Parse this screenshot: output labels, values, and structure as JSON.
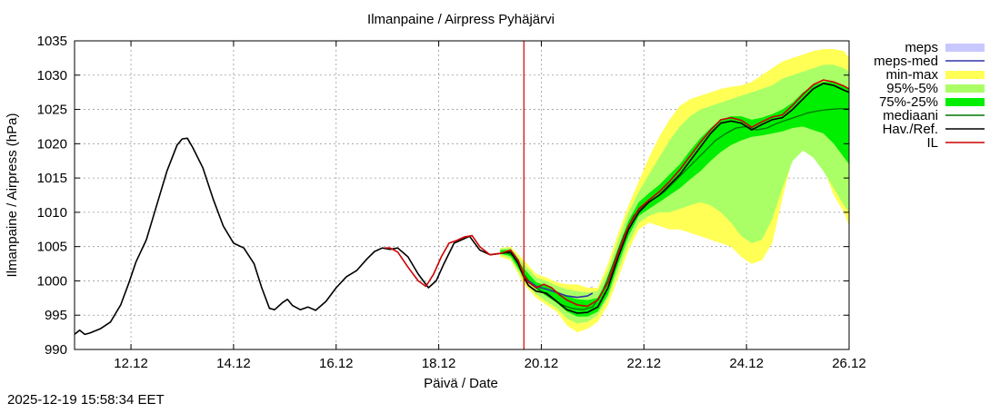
{
  "chart_data": {
    "type": "line",
    "title": "Ilmanpaine / Airpress Pyhäjärvi",
    "xlabel": "Päivä / Date",
    "ylabel": "Ilmanpaine / Airpress (hPa)",
    "timestamp": "2025-12-19 15:58:34 EET",
    "xlim": [
      10.9,
      26.0
    ],
    "ylim": [
      990,
      1035
    ],
    "grid": true,
    "x_ticks": [
      {
        "value": 12.0,
        "label": "12.12"
      },
      {
        "value": 14.0,
        "label": "14.12"
      },
      {
        "value": 16.0,
        "label": "16.12"
      },
      {
        "value": 18.0,
        "label": "18.12"
      },
      {
        "value": 20.0,
        "label": "20.12"
      },
      {
        "value": 22.0,
        "label": "22.12"
      },
      {
        "value": 24.0,
        "label": "24.12"
      },
      {
        "value": 26.0,
        "label": "26.12"
      }
    ],
    "y_ticks": [
      990,
      995,
      1000,
      1005,
      1010,
      1015,
      1020,
      1025,
      1030,
      1035
    ],
    "now_marker": {
      "x": 19.66,
      "color": "#cc0000"
    },
    "legend": {
      "placement": "top-right",
      "entries": [
        {
          "label": "meps",
          "color": "#c8c8ff",
          "kind": "band"
        },
        {
          "label": "meps-med",
          "color": "#3333aa",
          "kind": "line"
        },
        {
          "label": "min-max",
          "color": "#ffff55",
          "kind": "band"
        },
        {
          "label": "95%-5%",
          "color": "#aaff66",
          "kind": "band"
        },
        {
          "label": "75%-25%",
          "color": "#00ee00",
          "kind": "band"
        },
        {
          "label": "mediaani",
          "color": "#007700",
          "kind": "line"
        },
        {
          "label": "Hav./Ref.",
          "color": "#000000",
          "kind": "line"
        },
        {
          "label": "IL",
          "color": "#cc0000",
          "kind": "line"
        }
      ]
    },
    "series": [
      {
        "name": "Hav./Ref.",
        "color": "#000000",
        "x": [
          10.9,
          11.0,
          11.1,
          11.2,
          11.4,
          11.6,
          11.8,
          11.95,
          12.1,
          12.3,
          12.5,
          12.7,
          12.9,
          13.0,
          13.1,
          13.2,
          13.4,
          13.6,
          13.8,
          14.0,
          14.2,
          14.4,
          14.55,
          14.7,
          14.8,
          14.95,
          15.05,
          15.15,
          15.3,
          15.45,
          15.6,
          15.8,
          16.0,
          16.2,
          16.4,
          16.6,
          16.75,
          16.9,
          17.05,
          17.2,
          17.4,
          17.6,
          17.8,
          17.95,
          18.1,
          18.3,
          18.45,
          18.6,
          18.8,
          19.0,
          19.2,
          19.4,
          19.55,
          19.66,
          19.75,
          19.9,
          20.1,
          20.3,
          20.5,
          20.7,
          20.9,
          21.1,
          21.3,
          21.5,
          21.7,
          21.9,
          22.1,
          22.3,
          22.5,
          22.7,
          22.9,
          23.1,
          23.3,
          23.5,
          23.7,
          23.9,
          24.1,
          24.3,
          24.5,
          24.7,
          24.9,
          25.1,
          25.3,
          25.5,
          25.7,
          25.9,
          26.0
        ],
        "values": [
          992.2,
          992.8,
          992.2,
          992.4,
          993.0,
          994.0,
          996.5,
          999.5,
          1002.8,
          1006.0,
          1011.0,
          1016.0,
          1019.8,
          1020.7,
          1020.8,
          1019.5,
          1016.5,
          1012.0,
          1008.0,
          1005.5,
          1004.8,
          1002.5,
          999.0,
          996.0,
          995.8,
          996.8,
          997.3,
          996.4,
          995.8,
          996.2,
          995.7,
          997.0,
          999.0,
          1000.6,
          1001.5,
          1003.2,
          1004.3,
          1004.8,
          1004.6,
          1004.8,
          1003.5,
          1001.0,
          999.0,
          1000.0,
          1002.5,
          1005.5,
          1006.0,
          1006.5,
          1004.5,
          1003.8,
          1004.0,
          1004.2,
          1002.5,
          1000.5,
          999.3,
          998.5,
          998.2,
          997.0,
          995.8,
          995.3,
          995.4,
          996.2,
          999.0,
          1003.5,
          1007.5,
          1010.0,
          1011.5,
          1012.5,
          1014.0,
          1015.5,
          1017.5,
          1019.5,
          1021.5,
          1023.0,
          1023.3,
          1023.0,
          1022.0,
          1022.8,
          1023.5,
          1023.8,
          1025.0,
          1026.5,
          1028.0,
          1028.8,
          1028.5,
          1027.8,
          1027.5
        ]
      },
      {
        "name": "IL",
        "color": "#cc0000",
        "x": [
          16.95,
          17.05,
          17.2,
          17.4,
          17.6,
          17.75,
          17.9,
          18.05,
          18.2,
          18.35,
          18.5,
          18.65,
          18.8,
          19.0,
          19.2,
          19.4,
          19.55,
          19.66,
          19.75,
          19.9,
          20.05,
          20.2,
          20.35,
          20.5,
          20.7,
          20.9,
          21.1,
          21.3,
          21.5,
          21.7,
          21.9,
          22.1,
          22.3,
          22.5,
          22.7,
          22.9,
          23.1,
          23.3,
          23.5,
          23.7,
          23.9,
          24.1,
          24.3,
          24.5,
          24.7,
          24.9,
          25.1,
          25.3,
          25.5,
          25.7,
          25.9,
          26.0
        ],
        "values": [
          1004.8,
          1004.8,
          1004.2,
          1002.0,
          1000.0,
          999.2,
          1001.0,
          1003.5,
          1005.5,
          1005.9,
          1006.4,
          1006.6,
          1005.0,
          1003.8,
          1004.0,
          1004.5,
          1003.0,
          1000.8,
          999.8,
          999.0,
          999.5,
          999.0,
          998.0,
          997.2,
          996.5,
          996.3,
          997.2,
          999.8,
          1004.0,
          1008.0,
          1010.5,
          1011.8,
          1013.0,
          1014.5,
          1016.2,
          1018.2,
          1020.2,
          1022.0,
          1023.5,
          1023.8,
          1023.4,
          1022.4,
          1023.2,
          1023.9,
          1024.2,
          1025.6,
          1027.2,
          1028.6,
          1029.3,
          1029.0,
          1028.4,
          1028.0
        ]
      },
      {
        "name": "mediaani",
        "color": "#007700",
        "x": [
          19.3,
          19.5,
          19.66,
          19.8,
          20.0,
          20.2,
          20.4,
          20.6,
          20.8,
          21.0,
          21.2,
          21.4,
          21.6,
          21.8,
          22.0,
          22.2,
          22.4,
          22.6,
          22.8,
          23.0,
          23.2,
          23.4,
          23.6,
          23.8,
          24.0,
          24.2,
          24.4,
          24.6,
          24.8,
          25.0,
          25.2,
          25.4,
          25.6,
          25.8,
          26.0
        ],
        "values": [
          1004.2,
          1003.5,
          1001.0,
          999.5,
          998.5,
          997.5,
          996.5,
          996.0,
          995.8,
          996.2,
          998.5,
          1002.5,
          1006.5,
          1009.5,
          1011.0,
          1012.0,
          1013.0,
          1014.5,
          1016.0,
          1017.5,
          1019.0,
          1020.5,
          1021.5,
          1022.3,
          1022.5,
          1022.0,
          1022.3,
          1023.0,
          1023.5,
          1024.0,
          1024.5,
          1024.8,
          1025.0,
          1025.1,
          1025.1
        ]
      },
      {
        "name": "meps-med",
        "color": "#3333aa",
        "x": [
          19.66,
          19.9,
          20.1,
          20.3,
          20.5,
          20.7,
          20.9,
          21.0
        ],
        "values": [
          1000.5,
          999.2,
          998.8,
          998.3,
          997.8,
          997.6,
          997.8,
          998.2
        ]
      }
    ],
    "bands": [
      {
        "name": "meps",
        "color": "#c8c8ff",
        "x": [
          19.66,
          19.9,
          20.1,
          20.3,
          20.5,
          20.7,
          20.9,
          21.0
        ],
        "upper": [
          1001.0,
          1000.5,
          1000.3,
          999.8,
          999.2,
          998.8,
          998.8,
          999.3
        ],
        "lower": [
          999.8,
          998.5,
          998.0,
          997.5,
          997.0,
          996.7,
          996.8,
          997.3
        ]
      },
      {
        "name": "min-max",
        "color": "#ffff55",
        "x": [
          19.2,
          19.4,
          19.66,
          19.9,
          20.1,
          20.3,
          20.5,
          20.7,
          20.9,
          21.1,
          21.3,
          21.5,
          21.7,
          21.9,
          22.1,
          22.3,
          22.5,
          22.7,
          22.9,
          23.1,
          23.3,
          23.5,
          23.7,
          23.9,
          24.1,
          24.3,
          24.5,
          24.7,
          24.9,
          25.1,
          25.3,
          25.5,
          25.7,
          25.9,
          26.0
        ],
        "upper": [
          1004.8,
          1005.0,
          1003.0,
          1001.0,
          1000.5,
          999.8,
          999.5,
          999.5,
          999.0,
          999.0,
          1002.5,
          1007.0,
          1011.0,
          1014.5,
          1018.0,
          1021.0,
          1023.5,
          1025.5,
          1026.5,
          1027.0,
          1027.5,
          1028.0,
          1028.3,
          1028.5,
          1029.0,
          1030.0,
          1031.0,
          1032.0,
          1032.5,
          1033.0,
          1033.5,
          1033.8,
          1033.8,
          1033.5,
          1032.5
        ],
        "lower": [
          1003.5,
          1003.0,
          999.5,
          997.5,
          996.5,
          995.5,
          993.5,
          992.5,
          993.0,
          994.0,
          996.5,
          1000.5,
          1004.5,
          1007.5,
          1008.5,
          1008.0,
          1007.5,
          1007.5,
          1007.0,
          1006.5,
          1006.0,
          1005.5,
          1005.0,
          1003.5,
          1002.5,
          1003.0,
          1005.5,
          1012.0,
          1018.0,
          1019.5,
          1018.5,
          1016.5,
          1012.5,
          1010.0,
          1008.0
        ]
      },
      {
        "name": "95%-5%",
        "color": "#aaff66",
        "x": [
          19.2,
          19.4,
          19.66,
          19.9,
          20.1,
          20.3,
          20.5,
          20.7,
          20.9,
          21.1,
          21.3,
          21.5,
          21.7,
          21.9,
          22.1,
          22.3,
          22.5,
          22.7,
          22.9,
          23.1,
          23.3,
          23.5,
          23.7,
          23.9,
          24.1,
          24.3,
          24.5,
          24.7,
          24.9,
          25.1,
          25.3,
          25.5,
          25.7,
          25.9,
          26.0
        ],
        "upper": [
          1004.7,
          1004.8,
          1002.5,
          1000.5,
          1000.0,
          999.3,
          998.8,
          998.5,
          998.3,
          998.5,
          1001.5,
          1006.0,
          1010.0,
          1013.0,
          1015.5,
          1018.0,
          1020.5,
          1022.5,
          1024.0,
          1025.0,
          1025.5,
          1026.0,
          1026.5,
          1027.0,
          1027.5,
          1028.0,
          1028.5,
          1029.5,
          1030.0,
          1030.5,
          1031.0,
          1031.5,
          1031.5,
          1031.0,
          1030.5
        ],
        "lower": [
          1003.8,
          1003.3,
          1000.0,
          998.0,
          997.0,
          996.0,
          994.5,
          993.8,
          994.0,
          995.0,
          997.5,
          1001.5,
          1005.5,
          1008.5,
          1009.5,
          1010.0,
          1010.0,
          1010.5,
          1011.0,
          1011.5,
          1011.0,
          1010.0,
          1008.5,
          1006.5,
          1005.5,
          1006.0,
          1009.0,
          1013.5,
          1017.5,
          1019.0,
          1018.0,
          1016.0,
          1013.5,
          1011.0,
          1010.0
        ]
      },
      {
        "name": "75%-25%",
        "color": "#00ee00",
        "x": [
          19.2,
          19.4,
          19.66,
          19.9,
          20.1,
          20.3,
          20.5,
          20.7,
          20.9,
          21.1,
          21.3,
          21.5,
          21.7,
          21.9,
          22.1,
          22.3,
          22.5,
          22.7,
          22.9,
          23.1,
          23.3,
          23.5,
          23.7,
          23.9,
          24.1,
          24.3,
          24.5,
          24.7,
          24.9,
          25.1,
          25.3,
          25.5,
          25.7,
          25.9,
          26.0
        ],
        "upper": [
          1004.5,
          1004.5,
          1001.8,
          999.8,
          999.3,
          998.5,
          997.8,
          997.3,
          997.2,
          997.5,
          1000.5,
          1004.8,
          1008.8,
          1011.5,
          1012.8,
          1014.0,
          1015.5,
          1017.0,
          1019.0,
          1020.8,
          1022.3,
          1023.5,
          1024.0,
          1024.0,
          1023.5,
          1023.8,
          1024.3,
          1025.0,
          1026.0,
          1027.5,
          1028.5,
          1029.0,
          1029.0,
          1028.5,
          1028.0
        ],
        "lower": [
          1004.0,
          1003.6,
          1000.5,
          998.8,
          997.8,
          996.8,
          995.5,
          994.8,
          994.8,
          995.5,
          998.0,
          1002.5,
          1006.5,
          1009.5,
          1010.5,
          1011.5,
          1012.5,
          1013.5,
          1014.8,
          1016.0,
          1017.5,
          1018.8,
          1019.8,
          1020.5,
          1021.0,
          1021.2,
          1021.5,
          1021.8,
          1022.3,
          1022.5,
          1022.0,
          1021.5,
          1020.0,
          1018.0,
          1017.0
        ]
      }
    ]
  }
}
